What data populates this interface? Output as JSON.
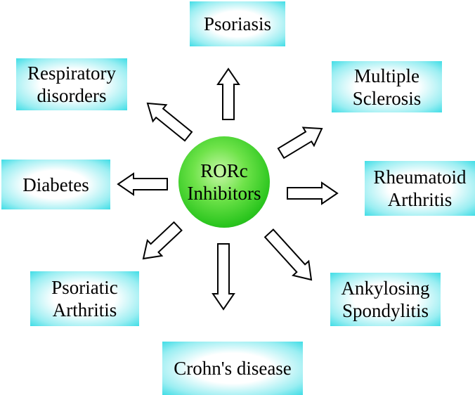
{
  "center": {
    "line1": "RORc",
    "line2": "Inhibitors"
  },
  "diseases": {
    "psoriasis": {
      "line1": "Psoriasis"
    },
    "multiple_sclerosis": {
      "line1": "Multiple",
      "line2": "Sclerosis"
    },
    "rheumatoid_arthritis": {
      "line1": "Rheumatoid",
      "line2": "Arthritis"
    },
    "ankylosing_spondylitis": {
      "line1": "Ankylosing",
      "line2": "Spondylitis"
    },
    "crohns_disease": {
      "line1": "Crohn's disease"
    },
    "psoriatic_arthritis": {
      "line1": "Psoriatic",
      "line2": "Arthritis"
    },
    "diabetes": {
      "line1": "Diabetes"
    },
    "respiratory_disorders": {
      "line1": "Respiratory",
      "line2": "disorders"
    }
  },
  "colors": {
    "box_edge": "#3fdde6",
    "box_center": "#ffffff",
    "circle_green": "#2cc61f",
    "arrow_stroke": "#000000",
    "arrow_fill": "#ffffff"
  }
}
